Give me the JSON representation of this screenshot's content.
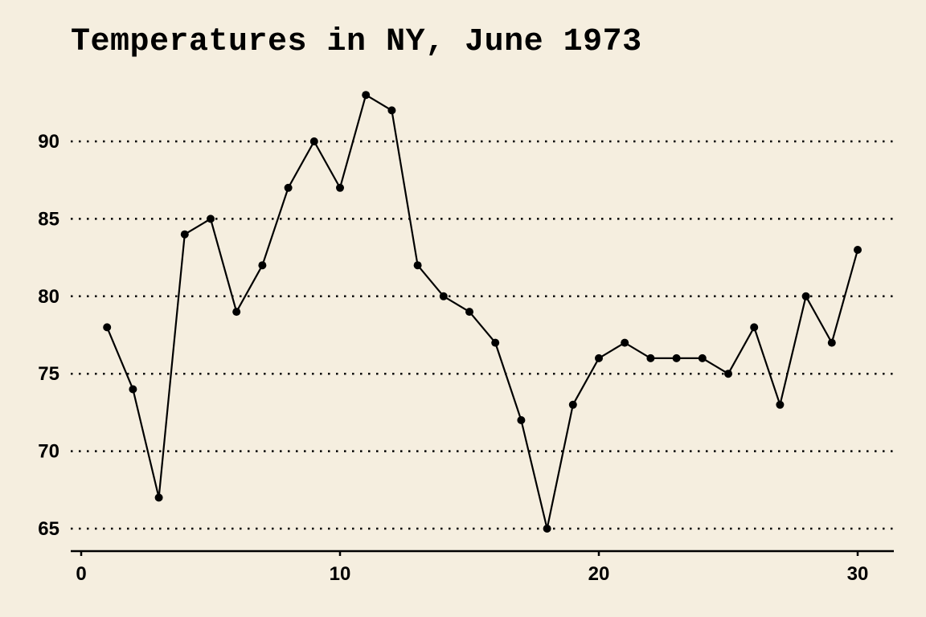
{
  "chart_data": {
    "type": "line",
    "title": "Temperatures in NY, June 1973",
    "xlabel": "",
    "ylabel": "",
    "x": [
      1,
      2,
      3,
      4,
      5,
      6,
      7,
      8,
      9,
      10,
      11,
      12,
      13,
      14,
      15,
      16,
      17,
      18,
      19,
      20,
      21,
      22,
      23,
      24,
      25,
      26,
      27,
      28,
      29,
      30
    ],
    "series": [
      {
        "values": [
          78,
          74,
          67,
          84,
          85,
          79,
          82,
          87,
          90,
          87,
          93,
          92,
          82,
          80,
          79,
          77,
          72,
          65,
          73,
          76,
          77,
          76,
          76,
          76,
          75,
          78,
          73,
          80,
          77,
          83
        ]
      }
    ],
    "xlim": [
      0,
      30
    ],
    "ylim": [
      65,
      93
    ],
    "x_ticks": [
      "0",
      "10",
      "20",
      "30"
    ],
    "y_ticks": [
      "65",
      "70",
      "75",
      "80",
      "85",
      "90"
    ],
    "grid": "horizontal dotted",
    "background_color": "#f5eedf",
    "line_color": "#000000"
  }
}
